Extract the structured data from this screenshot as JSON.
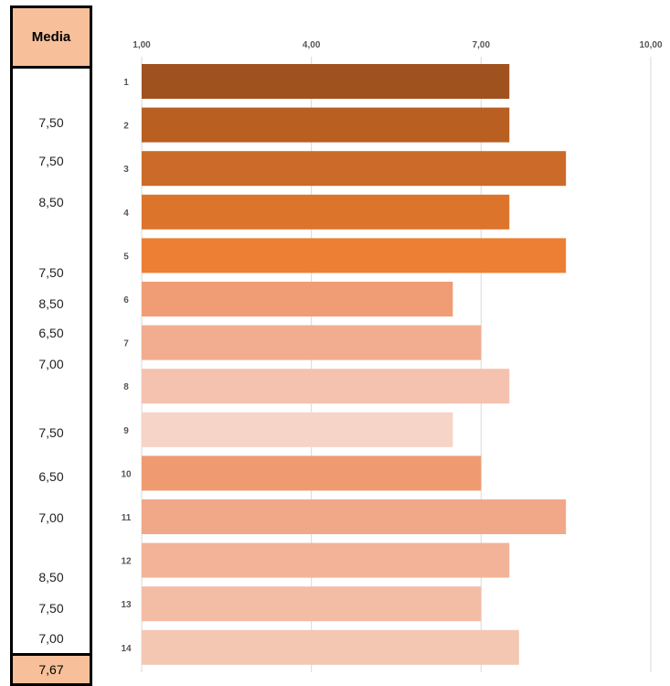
{
  "media_panel": {
    "header": "Media",
    "values": [
      "7,50",
      "7,50",
      "8,50",
      "7,50",
      "8,50",
      "6,50",
      "7,00",
      "7,50",
      "6,50",
      "7,00",
      "8,50",
      "7,50",
      "7,00"
    ],
    "footer": "7,67"
  },
  "chart_data": {
    "type": "bar",
    "orientation": "horizontal",
    "categories": [
      "1",
      "2",
      "3",
      "4",
      "5",
      "6",
      "7",
      "8",
      "9",
      "10",
      "11",
      "12",
      "13",
      "14"
    ],
    "values": [
      7.5,
      7.5,
      8.5,
      7.5,
      8.5,
      6.5,
      7.0,
      7.5,
      6.5,
      7.0,
      8.5,
      7.5,
      7.0,
      7.67
    ],
    "xlim": [
      1,
      10
    ],
    "xticks": [
      "1,00",
      "4,00",
      "7,00",
      "10,00"
    ],
    "xtick_values": [
      1,
      4,
      7,
      10
    ],
    "grid": true,
    "tick_position": "top",
    "colors": [
      "#a0521e",
      "#b95f22",
      "#cc6a29",
      "#dd742c",
      "#ec7f33",
      "#f09c74",
      "#f2ad90",
      "#f4c2ae",
      "#f6d4c7",
      "#ef9a70",
      "#f1a888",
      "#f2b398",
      "#f3bda5",
      "#f4c7b3"
    ],
    "title": "",
    "xlabel": "",
    "ylabel": ""
  }
}
